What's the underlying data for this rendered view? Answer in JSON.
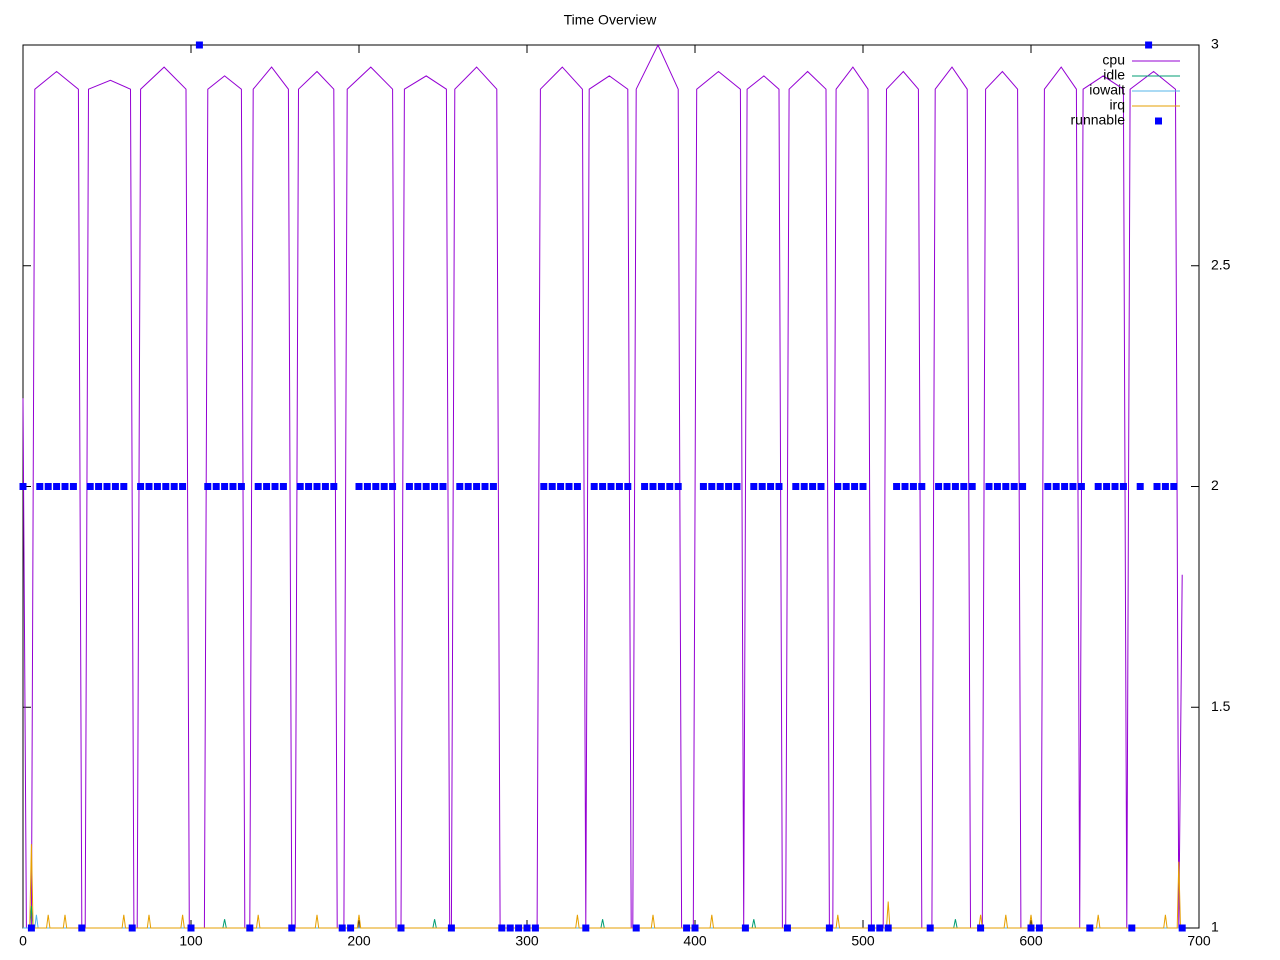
{
  "chart_data": {
    "type": "line",
    "title": "Time Overview",
    "xlim": [
      0,
      700
    ],
    "xticks": [
      0,
      100,
      200,
      300,
      400,
      500,
      600,
      700
    ],
    "ylim": [
      1,
      3
    ],
    "yticks": [
      1,
      1.5,
      2,
      2.5,
      3
    ],
    "grid": false,
    "legend": "top-right",
    "series": [
      {
        "name": "cpu",
        "color": "#9400d3",
        "style": "line",
        "x": [
          0,
          2,
          5,
          7,
          20,
          33,
          35,
          37,
          39,
          52,
          64,
          66,
          68,
          70,
          84,
          97,
          99,
          108,
          110,
          120,
          130,
          132,
          135,
          137,
          148,
          158,
          160,
          162,
          164,
          175,
          185,
          187,
          191,
          193,
          207,
          220,
          222,
          225,
          227,
          240,
          252,
          254,
          255,
          257,
          270,
          282,
          284,
          306,
          308,
          321,
          333,
          335,
          335,
          337,
          349,
          360,
          362,
          363,
          365,
          378,
          390,
          392,
          399,
          401,
          414,
          427,
          429,
          429,
          431,
          441,
          450,
          452,
          454,
          456,
          467,
          478,
          480,
          482,
          484,
          494,
          503,
          505,
          512,
          514,
          524,
          533,
          535,
          541,
          543,
          553,
          562,
          564,
          571,
          573,
          583,
          592,
          594,
          606,
          608,
          618,
          627,
          629,
          629,
          631,
          643,
          655,
          657,
          657,
          659,
          673,
          686,
          688,
          690
        ],
        "values": [
          2.2,
          1,
          1,
          2.9,
          2.94,
          2.9,
          1,
          1,
          2.9,
          2.92,
          2.9,
          1,
          1,
          2.9,
          2.95,
          2.9,
          1,
          1,
          2.9,
          2.93,
          2.9,
          1,
          1,
          2.9,
          2.95,
          2.9,
          1,
          1,
          2.9,
          2.94,
          2.9,
          1,
          1,
          2.9,
          2.95,
          2.9,
          1,
          1,
          2.9,
          2.93,
          2.9,
          1,
          1,
          2.9,
          2.95,
          2.9,
          1,
          1,
          2.9,
          2.95,
          2.9,
          1,
          1,
          2.9,
          2.93,
          2.9,
          1,
          1,
          2.9,
          3.0,
          2.9,
          1,
          1,
          2.9,
          2.94,
          2.9,
          1,
          1,
          2.9,
          2.93,
          2.9,
          1,
          1,
          2.9,
          2.94,
          2.9,
          1,
          1,
          2.9,
          2.95,
          2.9,
          1,
          1,
          2.9,
          2.94,
          2.9,
          1,
          1,
          2.9,
          2.95,
          2.9,
          1,
          1,
          2.9,
          2.94,
          2.9,
          1,
          1,
          2.9,
          2.95,
          2.9,
          1,
          1,
          2.9,
          2.93,
          2.9,
          1,
          1,
          2.9,
          2.94,
          2.9,
          1,
          1.8
        ]
      },
      {
        "name": "idle",
        "color": "#009e73",
        "style": "line",
        "x": [
          4,
          5,
          6,
          119,
          120,
          121,
          244,
          245,
          246,
          344,
          345,
          346,
          434,
          435,
          436,
          554,
          555,
          556
        ],
        "values": [
          1,
          1.05,
          1,
          1,
          1.02,
          1,
          1,
          1.02,
          1,
          1,
          1.02,
          1,
          1,
          1.02,
          1,
          1,
          1.02,
          1
        ]
      },
      {
        "name": "iowait",
        "color": "#56b4e9",
        "style": "line",
        "x": [
          0,
          7,
          8,
          9,
          690
        ],
        "values": [
          1,
          1,
          1.03,
          1,
          1
        ]
      },
      {
        "name": "irq",
        "color": "#e69f00",
        "style": "line",
        "x": [
          4,
          5,
          6,
          14,
          15,
          16,
          24,
          25,
          26,
          59,
          60,
          61,
          74,
          75,
          76,
          94,
          95,
          96,
          139,
          140,
          141,
          174,
          175,
          176,
          199,
          200,
          201,
          329,
          330,
          331,
          374,
          375,
          376,
          409,
          410,
          411,
          484,
          485,
          486,
          514,
          515,
          516,
          569,
          570,
          571,
          584,
          585,
          586,
          599,
          600,
          601,
          639,
          640,
          641,
          679,
          680,
          681,
          687,
          688,
          689
        ],
        "values": [
          1,
          1.19,
          1,
          1,
          1.03,
          1,
          1,
          1.03,
          1,
          1,
          1.03,
          1,
          1,
          1.03,
          1,
          1,
          1.03,
          1,
          1,
          1.03,
          1,
          1,
          1.03,
          1,
          1,
          1.03,
          1,
          1,
          1.03,
          1,
          1,
          1.03,
          1,
          1,
          1.03,
          1,
          1,
          1.03,
          1,
          1,
          1.06,
          1,
          1,
          1.03,
          1,
          1,
          1.03,
          1,
          1,
          1.03,
          1,
          1,
          1.03,
          1,
          1,
          1.03,
          1,
          1,
          1.15,
          1
        ]
      },
      {
        "name": "runnable",
        "color": "#0000ff",
        "style": "points",
        "x": [
          0,
          5,
          10,
          15,
          20,
          25,
          30,
          35,
          40,
          45,
          50,
          55,
          60,
          65,
          70,
          75,
          80,
          85,
          90,
          95,
          100,
          105,
          110,
          115,
          120,
          125,
          130,
          135,
          140,
          145,
          150,
          155,
          160,
          165,
          170,
          175,
          180,
          185,
          190,
          195,
          200,
          205,
          210,
          215,
          220,
          225,
          230,
          235,
          240,
          245,
          250,
          255,
          260,
          265,
          270,
          275,
          280,
          285,
          290,
          295,
          300,
          305,
          310,
          315,
          320,
          325,
          330,
          335,
          340,
          345,
          350,
          355,
          360,
          365,
          370,
          375,
          380,
          385,
          390,
          395,
          400,
          405,
          410,
          415,
          420,
          425,
          430,
          435,
          440,
          445,
          450,
          455,
          460,
          465,
          470,
          475,
          480,
          485,
          490,
          495,
          500,
          505,
          510,
          515,
          520,
          525,
          530,
          535,
          540,
          545,
          550,
          555,
          560,
          565,
          570,
          575,
          580,
          585,
          590,
          595,
          600,
          605,
          610,
          615,
          620,
          625,
          630,
          635,
          640,
          645,
          650,
          655,
          660,
          665,
          670,
          675,
          680,
          685,
          690
        ],
        "values": [
          2,
          1,
          2,
          2,
          2,
          2,
          2,
          1,
          2,
          2,
          2,
          2,
          2,
          1,
          2,
          2,
          2,
          2,
          2,
          2,
          1,
          3,
          2,
          2,
          2,
          2,
          2,
          1,
          2,
          2,
          2,
          2,
          1,
          2,
          2,
          2,
          2,
          2,
          1,
          1,
          2,
          2,
          2,
          2,
          2,
          1,
          2,
          2,
          2,
          2,
          2,
          1,
          2,
          2,
          2,
          2,
          2,
          1,
          1,
          1,
          1,
          1,
          2,
          2,
          2,
          2,
          2,
          1,
          2,
          2,
          2,
          2,
          2,
          1,
          2,
          2,
          2,
          2,
          2,
          1,
          1,
          2,
          2,
          2,
          2,
          2,
          1,
          2,
          2,
          2,
          2,
          1,
          2,
          2,
          2,
          2,
          1,
          2,
          2,
          2,
          2,
          1,
          1,
          1,
          2,
          2,
          2,
          2,
          1,
          2,
          2,
          2,
          2,
          2,
          1,
          2,
          2,
          2,
          2,
          2,
          1,
          1,
          2,
          2,
          2,
          2,
          2,
          1,
          2,
          2,
          2,
          2,
          1,
          2,
          3,
          2,
          2,
          2,
          1
        ]
      }
    ]
  }
}
